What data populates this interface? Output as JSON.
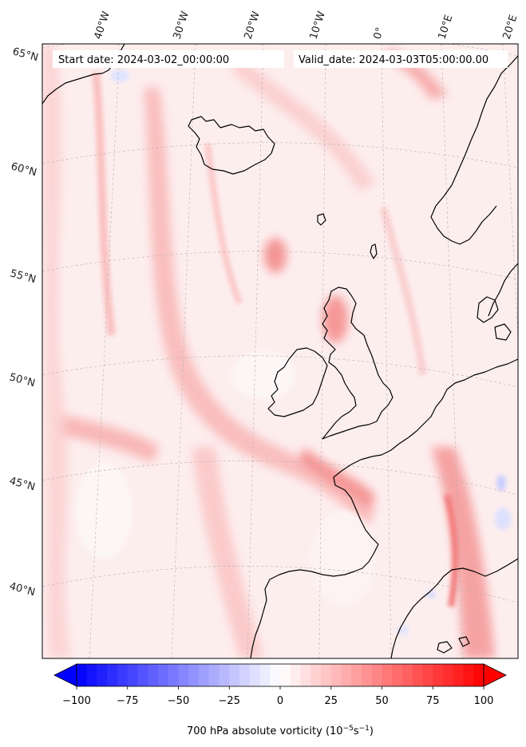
{
  "header": {
    "start_date": "Start date: 2024-03-02_00:00:00",
    "valid_date": "Valid_date: 2024-03-03T05:00:00.00"
  },
  "map": {
    "lon_labels": [
      "40°W",
      "30°W",
      "20°W",
      "10°W",
      "0°",
      "10°E",
      "20°E"
    ],
    "lat_labels": [
      "65°N",
      "60°N",
      "55°N",
      "50°N",
      "45°N",
      "40°N"
    ],
    "field_colors": {
      "background": "#fdeeee",
      "light": "#fcd7d7",
      "medium": "#f9b4b4",
      "strong": "#f58c8c",
      "neutral": "#fdfafa",
      "negative": "#dfe2ff"
    },
    "coast_color": "#000000",
    "grid_color": "#b0b0b0"
  },
  "colorbar": {
    "min": -100,
    "max": 100,
    "steps": 40,
    "colormap": "bwr",
    "extend": "both",
    "tick_labels": [
      "−100",
      "−75",
      "−50",
      "−25",
      "0",
      "25",
      "50",
      "75",
      "100"
    ],
    "tick_values": [
      -100,
      -75,
      -50,
      -25,
      0,
      25,
      50,
      75,
      100
    ],
    "label_main": "700 hPa absolute vorticity (10",
    "label_exp1": "−5",
    "label_mid": "s",
    "label_exp2": "−1",
    "label_end": ")"
  }
}
